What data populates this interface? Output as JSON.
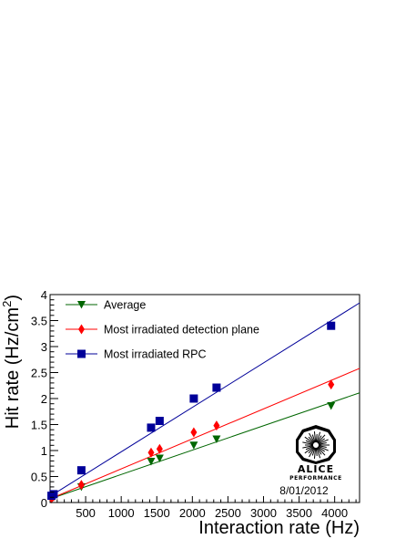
{
  "chart_data": {
    "type": "scatter",
    "xlabel": "Interaction rate (Hz)",
    "ylabel_main": "Hit rate (Hz/cm",
    "ylabel_sup": "2",
    "ylabel_tail": ")",
    "xlim": [
      0,
      4350
    ],
    "ylim": [
      0,
      4
    ],
    "x_ticks": [
      500,
      1000,
      1500,
      2000,
      2500,
      3000,
      3500,
      4000
    ],
    "y_ticks": [
      0,
      0.5,
      1,
      1.5,
      2,
      2.5,
      3,
      3.5,
      4
    ],
    "y_tick_labels": [
      "0",
      "0.5",
      "1",
      "1.5",
      "2",
      "2.5",
      "3",
      "3.5",
      "4"
    ],
    "legend_position": "top-left",
    "series": [
      {
        "name": "Average",
        "marker": "triangle-down",
        "color": "#006600",
        "x": [
          20,
          50,
          440,
          1420,
          1540,
          2020,
          2340,
          3950
        ],
        "y": [
          0.07,
          0.1,
          0.3,
          0.79,
          0.85,
          1.1,
          1.22,
          1.86
        ],
        "fit": {
          "x": [
            0,
            4350
          ],
          "y": [
            0.07,
            2.11
          ]
        }
      },
      {
        "name": "Most irradiated detection plane",
        "marker": "diamond",
        "color": "#ff0000",
        "x": [
          20,
          50,
          440,
          1420,
          1540,
          2020,
          2340,
          3950
        ],
        "y": [
          0.08,
          0.12,
          0.34,
          0.96,
          1.03,
          1.35,
          1.48,
          2.27
        ],
        "fit": {
          "x": [
            0,
            4350
          ],
          "y": [
            0.07,
            2.58
          ]
        }
      },
      {
        "name": "Most irradiated RPC",
        "marker": "square",
        "color": "#000099",
        "x": [
          20,
          50,
          440,
          1420,
          1540,
          2020,
          2340,
          3950
        ],
        "y": [
          0.13,
          0.16,
          0.62,
          1.44,
          1.57,
          2.0,
          2.21,
          3.4
        ],
        "fit": {
          "x": [
            0,
            4350
          ],
          "y": [
            0.12,
            3.84
          ]
        }
      }
    ],
    "logo": {
      "name": "ALICE",
      "subtitle": "PERFORMANCE"
    },
    "date": "8/01/2012"
  }
}
